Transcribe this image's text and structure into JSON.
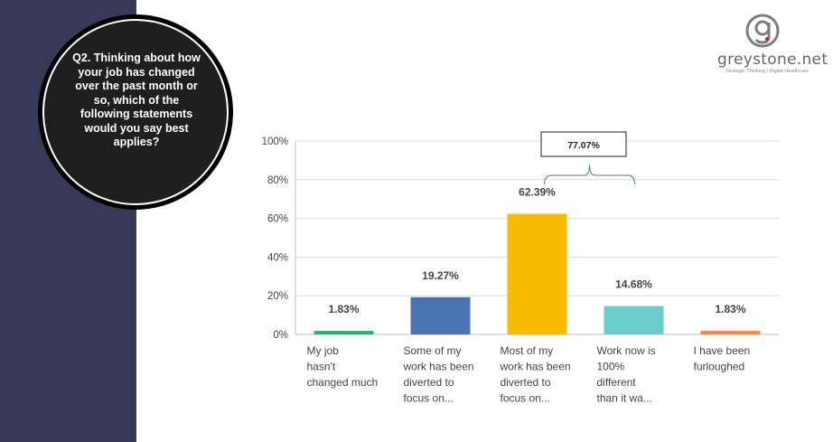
{
  "question": "Q2. Thinking about how your job has changed over the past month or so, which of the following statements would you say best applies?",
  "logo": {
    "name": "greystone.net",
    "tagline": "Strategic Thinking | Digital Healthcare",
    "accent_color": "#c8202f"
  },
  "colors": {
    "sidebar": "#363a56",
    "circle": "#1f1f1f"
  },
  "chart_data": {
    "type": "bar",
    "categories": [
      "My job hasn't changed much",
      "Some of my work has been diverted to focus on...",
      "Most of my work has been diverted to focus on...",
      "Work now is 100% different than it wa...",
      "I have been furloughed"
    ],
    "category_lines": [
      [
        "My job",
        "hasn't",
        "changed much"
      ],
      [
        "Some of my",
        "work has been",
        "diverted to",
        "focus on..."
      ],
      [
        "Most of my",
        "work has been",
        "diverted to",
        "focus on..."
      ],
      [
        "Work now is",
        "100%",
        "different",
        "than it wa..."
      ],
      [
        "I have been",
        "furloughed"
      ]
    ],
    "values": [
      1.83,
      19.27,
      62.39,
      14.68,
      1.83
    ],
    "data_labels": [
      "1.83%",
      "19.27%",
      "62.39%",
      "14.68%",
      "1.83%"
    ],
    "bar_colors": [
      "#21b573",
      "#4a74b1",
      "#f7bb00",
      "#6ccccd",
      "#f5894a"
    ],
    "ylim": [
      0,
      100
    ],
    "yticks": [
      "0%",
      "20%",
      "40%",
      "60%",
      "80%",
      "100%"
    ],
    "ytick_values": [
      0,
      20,
      40,
      60,
      80,
      100
    ],
    "grid": true,
    "annotation": {
      "label": "77.07%",
      "spans_categories": [
        2,
        3
      ]
    }
  }
}
